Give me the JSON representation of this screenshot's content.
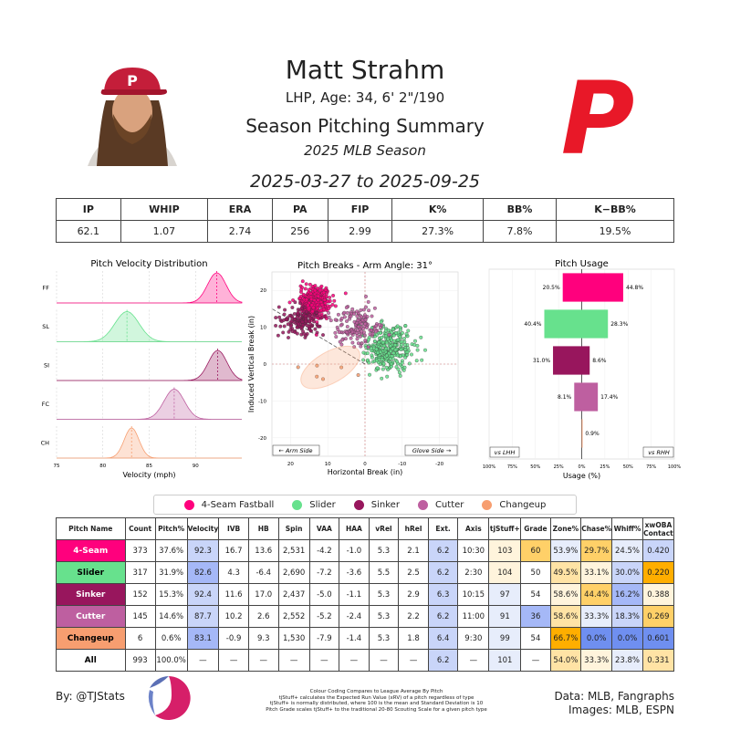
{
  "header": {
    "name": "Matt Strahm",
    "info": "LHP, Age: 34, 6' 2\"/190",
    "title": "Season Pitching Summary",
    "season": "2025 MLB Season",
    "dates": "2025-03-27 to 2025-09-25"
  },
  "season_stats": {
    "headers": [
      "IP",
      "WHIP",
      "ERA",
      "PA",
      "FIP",
      "K%",
      "BB%",
      "K−BB%"
    ],
    "values": [
      "62.1",
      "1.07",
      "2.74",
      "256",
      "2.99",
      "27.3%",
      "7.8%",
      "19.5%"
    ]
  },
  "colors": {
    "FF": "#ff007d",
    "SL": "#67e18d",
    "SI": "#98165d",
    "FC": "#be5fa0",
    "CH": "#f79e70",
    "blue_strong": "#6f8ff0",
    "blue_mid": "#a5b8f7",
    "blue_light": "#c9d5f9",
    "blue_faint": "#e7edfb",
    "orange_strong": "#ffae00",
    "orange_mid": "#ffd068",
    "orange_light": "#ffe3a5",
    "orange_faint": "#fff4dc"
  },
  "legend": [
    {
      "label": "4-Seam Fastball",
      "color": "#ff007d"
    },
    {
      "label": "Slider",
      "color": "#67e18d"
    },
    {
      "label": "Sinker",
      "color": "#98165d"
    },
    {
      "label": "Cutter",
      "color": "#be5fa0"
    },
    {
      "label": "Changeup",
      "color": "#f79e70"
    }
  ],
  "pitch_table": {
    "headers": [
      "Pitch Name",
      "Count",
      "Pitch%",
      "Velocity",
      "IVB",
      "HB",
      "Spin",
      "VAA",
      "HAA",
      "vRel",
      "hRel",
      "Ext.",
      "Axis",
      "tjStuff+",
      "Grade",
      "Zone%",
      "Chase%",
      "Whiff%",
      "xwOBA Contact"
    ],
    "rows": [
      {
        "cells": [
          "4-Seam",
          "373",
          "37.6%",
          "92.3",
          "16.7",
          "13.6",
          "2,531",
          "-4.2",
          "-1.0",
          "5.3",
          "2.1",
          "6.2",
          "10:30",
          "103",
          "60",
          "53.9%",
          "29.7%",
          "24.5%",
          "0.420"
        ],
        "color": "#ff007d",
        "text_color": "#ffffff"
      },
      {
        "cells": [
          "Slider",
          "317",
          "31.9%",
          "82.6",
          "4.3",
          "-6.4",
          "2,690",
          "-7.2",
          "-3.6",
          "5.5",
          "2.5",
          "6.2",
          "2:30",
          "104",
          "50",
          "49.5%",
          "33.1%",
          "30.0%",
          "0.220"
        ],
        "color": "#67e18d",
        "text_color": "#000000"
      },
      {
        "cells": [
          "Sinker",
          "152",
          "15.3%",
          "92.4",
          "11.6",
          "17.0",
          "2,437",
          "-5.0",
          "-1.1",
          "5.3",
          "2.9",
          "6.3",
          "10:15",
          "97",
          "54",
          "58.6%",
          "44.4%",
          "16.2%",
          "0.388"
        ],
        "color": "#98165d",
        "text_color": "#ffffff"
      },
      {
        "cells": [
          "Cutter",
          "145",
          "14.6%",
          "87.7",
          "10.2",
          "2.6",
          "2,552",
          "-5.2",
          "-2.4",
          "5.3",
          "2.2",
          "6.2",
          "11:00",
          "91",
          "36",
          "58.6%",
          "33.3%",
          "18.3%",
          "0.269"
        ],
        "color": "#be5fa0",
        "text_color": "#ffffff"
      },
      {
        "cells": [
          "Changeup",
          "6",
          "0.6%",
          "83.1",
          "-0.9",
          "9.3",
          "1,530",
          "-7.9",
          "-1.4",
          "5.3",
          "1.8",
          "6.4",
          "9:30",
          "99",
          "54",
          "66.7%",
          "0.0%",
          "0.0%",
          "0.601"
        ],
        "color": "#f79e70",
        "text_color": "#000000"
      },
      {
        "cells": [
          "All",
          "993",
          "100.0%",
          "—",
          "—",
          "—",
          "—",
          "—",
          "—",
          "—",
          "—",
          "6.2",
          "—",
          "101",
          "—",
          "54.0%",
          "33.3%",
          "23.8%",
          "0.331"
        ],
        "color": "#ffffff",
        "text_color": "#000000"
      }
    ],
    "cell_colors": [
      {
        "r": 0,
        "c": 3,
        "k": "blue_light"
      },
      {
        "r": 0,
        "c": 11,
        "k": "blue_light"
      },
      {
        "r": 0,
        "c": 13,
        "k": "orange_faint"
      },
      {
        "r": 0,
        "c": 14,
        "k": "orange_mid"
      },
      {
        "r": 0,
        "c": 15,
        "k": "blue_faint"
      },
      {
        "r": 0,
        "c": 16,
        "k": "orange_mid"
      },
      {
        "r": 0,
        "c": 17,
        "k": "blue_faint"
      },
      {
        "r": 0,
        "c": 18,
        "k": "blue_light"
      },
      {
        "r": 1,
        "c": 3,
        "k": "blue_mid"
      },
      {
        "r": 1,
        "c": 11,
        "k": "blue_light"
      },
      {
        "r": 1,
        "c": 13,
        "k": "orange_faint"
      },
      {
        "r": 1,
        "c": 15,
        "k": "orange_light"
      },
      {
        "r": 1,
        "c": 16,
        "k": "orange_faint"
      },
      {
        "r": 1,
        "c": 17,
        "k": "blue_light"
      },
      {
        "r": 1,
        "c": 18,
        "k": "orange_strong"
      },
      {
        "r": 2,
        "c": 3,
        "k": "blue_light"
      },
      {
        "r": 2,
        "c": 11,
        "k": "blue_light"
      },
      {
        "r": 2,
        "c": 13,
        "k": "blue_faint"
      },
      {
        "r": 2,
        "c": 15,
        "k": "orange_faint"
      },
      {
        "r": 2,
        "c": 16,
        "k": "orange_mid"
      },
      {
        "r": 2,
        "c": 17,
        "k": "blue_mid"
      },
      {
        "r": 2,
        "c": 18,
        "k": "orange_faint"
      },
      {
        "r": 3,
        "c": 3,
        "k": "blue_light"
      },
      {
        "r": 3,
        "c": 11,
        "k": "blue_light"
      },
      {
        "r": 3,
        "c": 13,
        "k": "blue_faint"
      },
      {
        "r": 3,
        "c": 14,
        "k": "blue_mid"
      },
      {
        "r": 3,
        "c": 15,
        "k": "orange_light"
      },
      {
        "r": 3,
        "c": 16,
        "k": "blue_faint"
      },
      {
        "r": 3,
        "c": 17,
        "k": "blue_light"
      },
      {
        "r": 3,
        "c": 18,
        "k": "orange_mid"
      },
      {
        "r": 4,
        "c": 3,
        "k": "blue_mid"
      },
      {
        "r": 4,
        "c": 11,
        "k": "blue_light"
      },
      {
        "r": 4,
        "c": 13,
        "k": "blue_faint"
      },
      {
        "r": 4,
        "c": 15,
        "k": "orange_strong"
      },
      {
        "r": 4,
        "c": 16,
        "k": "blue_strong"
      },
      {
        "r": 4,
        "c": 17,
        "k": "blue_strong"
      },
      {
        "r": 4,
        "c": 18,
        "k": "blue_strong"
      },
      {
        "r": 5,
        "c": 11,
        "k": "blue_light"
      },
      {
        "r": 5,
        "c": 13,
        "k": "blue_faint"
      },
      {
        "r": 5,
        "c": 15,
        "k": "orange_light"
      },
      {
        "r": 5,
        "c": 16,
        "k": "orange_faint"
      },
      {
        "r": 5,
        "c": 17,
        "k": "blue_faint"
      },
      {
        "r": 5,
        "c": 18,
        "k": "orange_light"
      }
    ]
  },
  "footer": {
    "byline": "By: @TJStats",
    "data_credit": "Data: MLB, Fangraphs",
    "image_credit": "Images: MLB, ESPN",
    "notes": [
      "Colour Coding Compares to League Average By Pitch",
      "tjStuff+ calculates the Expected Run Value (xRV) of a pitch regardless of type",
      "tjStuff+ is normally distributed, where 100 is the mean and Standard Deviation is 10",
      "Pitch Grade scales tjStuff+ to the traditional 20-80 Scouting Scale for a given pitch type"
    ],
    "logo_letter": "P"
  },
  "chart_data": [
    {
      "type": "area",
      "title": "Pitch Velocity Distribution",
      "xlabel": "Velocity (mph)",
      "xlim": [
        75,
        95
      ],
      "xticks": [
        75,
        80,
        85,
        90
      ],
      "series": [
        {
          "name": "FF",
          "mean": 92.3,
          "sd": 1.0
        },
        {
          "name": "SL",
          "mean": 82.6,
          "sd": 1.3
        },
        {
          "name": "SI",
          "mean": 92.4,
          "sd": 1.0
        },
        {
          "name": "FC",
          "mean": 87.7,
          "sd": 1.1
        },
        {
          "name": "CH",
          "mean": 83.1,
          "sd": 0.8
        }
      ]
    },
    {
      "type": "scatter",
      "title": "Pitch Breaks - Arm Angle: 31°",
      "xlabel": "Horizontal Break (in)",
      "ylabel": "Induced Vertical Break (in)",
      "xlim": [
        25,
        -25
      ],
      "ylim": [
        -25,
        25
      ],
      "xticks": [
        20,
        10,
        0,
        -10,
        -20
      ],
      "yticks": [
        20,
        10,
        0,
        -10,
        -20
      ],
      "arm_angle": 31,
      "annotations": [
        "← Arm Side",
        "Glove Side →"
      ],
      "series": [
        {
          "name": "FF",
          "x": 13.6,
          "y": 16.7,
          "sx": 2.0,
          "sy": 2.0,
          "n": 373
        },
        {
          "name": "SL",
          "x": -6.4,
          "y": 4.3,
          "sx": 3.0,
          "sy": 3.0,
          "n": 317
        },
        {
          "name": "SI",
          "x": 17.0,
          "y": 11.6,
          "sx": 2.5,
          "sy": 2.0,
          "n": 152
        },
        {
          "name": "FC",
          "x": 2.6,
          "y": 10.2,
          "sx": 3.0,
          "sy": 2.5,
          "n": 145
        },
        {
          "name": "CH",
          "x": 9.3,
          "y": -0.9,
          "sx": 3.5,
          "sy": 2.5,
          "n": 6
        }
      ]
    },
    {
      "type": "bar",
      "title": "Pitch Usage",
      "xlabel": "Usage (%)",
      "xticks": [
        "100%",
        "75%",
        "50%",
        "25%",
        "0%",
        "25%",
        "50%",
        "75%",
        "100%"
      ],
      "panel_labels": [
        "vs LHH",
        "vs RHH"
      ],
      "categories": [
        "FF",
        "SL",
        "SI",
        "FC",
        "CH"
      ],
      "series": [
        {
          "name": "vs LHH",
          "values": [
            20.5,
            40.4,
            31.0,
            8.1,
            0
          ]
        },
        {
          "name": "vs RHH",
          "values": [
            44.8,
            28.3,
            8.6,
            17.4,
            0.9
          ]
        }
      ]
    }
  ]
}
